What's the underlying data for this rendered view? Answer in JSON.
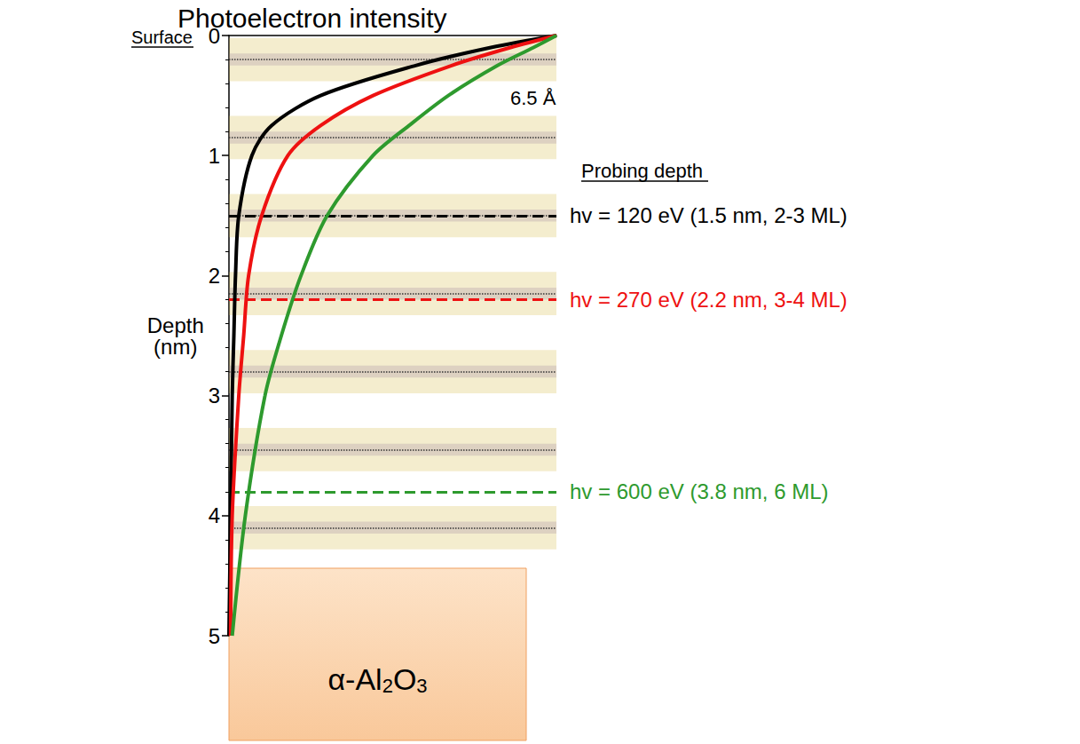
{
  "chart_data": {
    "type": "line",
    "title": "Photoelectron intensity",
    "y_label": "Depth (nm)",
    "xlim": [
      0,
      1
    ],
    "ylim": [
      0,
      5
    ],
    "yticks": [
      0,
      1,
      2,
      3,
      4,
      5
    ],
    "tick_labels": "y",
    "grid": false,
    "series": [
      {
        "color": "#000000",
        "line_style": "solid",
        "depths": [
          0,
          0.1,
          0.25,
          0.5,
          0.75,
          1,
          1.5,
          2,
          2.5,
          3,
          4,
          5
        ],
        "values": [
          1,
          0.8,
          0.57,
          0.28,
          0.13,
          0.07,
          0.03,
          0.02,
          0.015,
          0.01,
          0.005,
          0
        ]
      },
      {
        "color": "#ee1111",
        "line_style": "solid",
        "depths": [
          0,
          0.1,
          0.25,
          0.5,
          0.75,
          1,
          1.5,
          2,
          2.5,
          3,
          4,
          5
        ],
        "values": [
          1,
          0.86,
          0.68,
          0.44,
          0.28,
          0.18,
          0.1,
          0.06,
          0.045,
          0.03,
          0.01,
          0.005
        ]
      },
      {
        "color": "#2e9a2e",
        "line_style": "solid",
        "depths": [
          0,
          0.1,
          0.25,
          0.5,
          0.75,
          1,
          1.5,
          2,
          2.5,
          3,
          4,
          5
        ],
        "values": [
          1,
          0.93,
          0.82,
          0.67,
          0.55,
          0.44,
          0.3,
          0.22,
          0.16,
          0.11,
          0.05,
          0.01
        ]
      }
    ],
    "probing_depth_title": "Probing depth",
    "probing_depths": [
      {
        "depth": 1.5,
        "label": "hv = 120 eV (1.5 nm, 2-3 ML)",
        "color": "#000000"
      },
      {
        "depth": 2.2,
        "label": "hv = 270 eV (2.2 nm, 3-4 ML)",
        "color": "#ee1111"
      },
      {
        "depth": 3.8,
        "label": "hv = 600 eV (3.8 nm, 6 ML)",
        "color": "#2e9a2e"
      }
    ],
    "surface_label": "Surface",
    "layer_depths": [
      0.2,
      0.85,
      1.5,
      2.15,
      2.8,
      3.45,
      4.1
    ],
    "layer_spacing_label": "6.5 Å",
    "substrate_label": "α-Al2O3"
  }
}
